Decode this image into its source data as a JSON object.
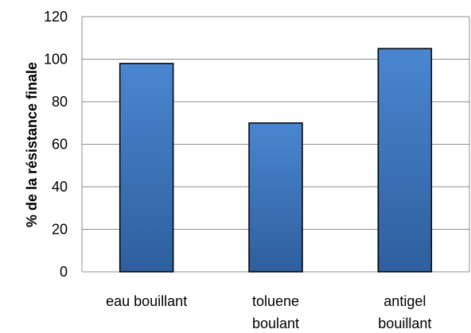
{
  "chart_data": {
    "type": "bar",
    "categories": [
      [
        "eau bouillant"
      ],
      [
        "toluene",
        "boulant"
      ],
      [
        "antigel",
        "bouillant"
      ]
    ],
    "values": [
      98,
      70,
      105
    ],
    "title": "",
    "xlabel": "",
    "ylabel": "% de la résistance finale",
    "ylim": [
      0,
      120
    ],
    "yticks": [
      "0",
      "20",
      "40",
      "60",
      "80",
      "100",
      "120"
    ],
    "grid": true,
    "legend": "none",
    "colors": {
      "bar_top": "#4a86d0",
      "bar_bottom": "#2e5f9e",
      "bar_edge": "#000000",
      "grid": "#8c8c8c",
      "axis": "#8c8c8c"
    }
  }
}
